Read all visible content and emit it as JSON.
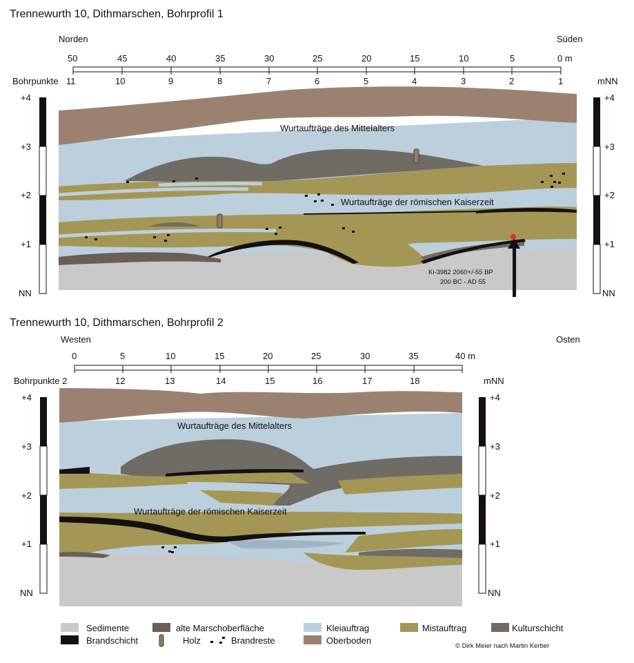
{
  "profile1": {
    "title": "Trennewurth 10, Dithmarschen, Bohrprofil 1",
    "dir_left": "Norden",
    "dir_right": "Süden",
    "scale_ticks": [
      "50",
      "45",
      "40",
      "35",
      "30",
      "25",
      "20",
      "15",
      "10",
      "5",
      "0 m"
    ],
    "bohrpunkte_label": "Bohrpunkte",
    "bohrpunkte": [
      "11",
      "10",
      "9",
      "8",
      "7",
      "6",
      "5",
      "4",
      "3",
      "2",
      "1"
    ],
    "unit": "mNN",
    "levels": [
      "+4",
      "+3",
      "+2",
      "+1",
      "NN"
    ],
    "label_mittelalter": "Wurtaufträge des Mittelalters",
    "label_kaiserzeit": "Wurtaufträge der römischen Kaiserzeit",
    "dating_line1": "Ki-3982 2060+/-55 BP",
    "dating_line2": "200 BC - AD 55"
  },
  "profile2": {
    "title": "Trennewurth 10, Dithmarschen, Bohrprofil 2",
    "dir_left": "Westen",
    "dir_right": "Osten",
    "scale_ticks": [
      "0",
      "5",
      "10",
      "15",
      "20",
      "25",
      "30",
      "35",
      "40 m"
    ],
    "bohrpunkte_label": "Bohrpunkte 2",
    "bohrpunkte": [
      "12",
      "13",
      "14",
      "15",
      "16",
      "17",
      "18"
    ],
    "unit": "mNN",
    "levels": [
      "+4",
      "+3",
      "+2",
      "+1",
      "NN"
    ],
    "label_mittelalter": "Wurtaufträge des Mittelalters",
    "label_kaiserzeit": "Wurtaufträge der römischen Kaiserzeit"
  },
  "legend": {
    "sedimente": "Sedimente",
    "marsch": "alte Marschoberfläche",
    "klei": "Kleiauftrag",
    "mist": "Mistauftrag",
    "kultur": "Kulturschicht",
    "brand": "Brandschicht",
    "holz": "Holz",
    "brandreste": "Brandreste",
    "oberboden": "Oberboden"
  },
  "credit": "© Dirk Meier nach Martin Kerber",
  "colors": {
    "sedimente": "#c9c9c9",
    "marsch": "#6b5e57",
    "klei": "#bccfdd",
    "mist": "#a49755",
    "kultur": "#6f6b65",
    "brand": "#151010",
    "oberboden": "#9b8270"
  }
}
